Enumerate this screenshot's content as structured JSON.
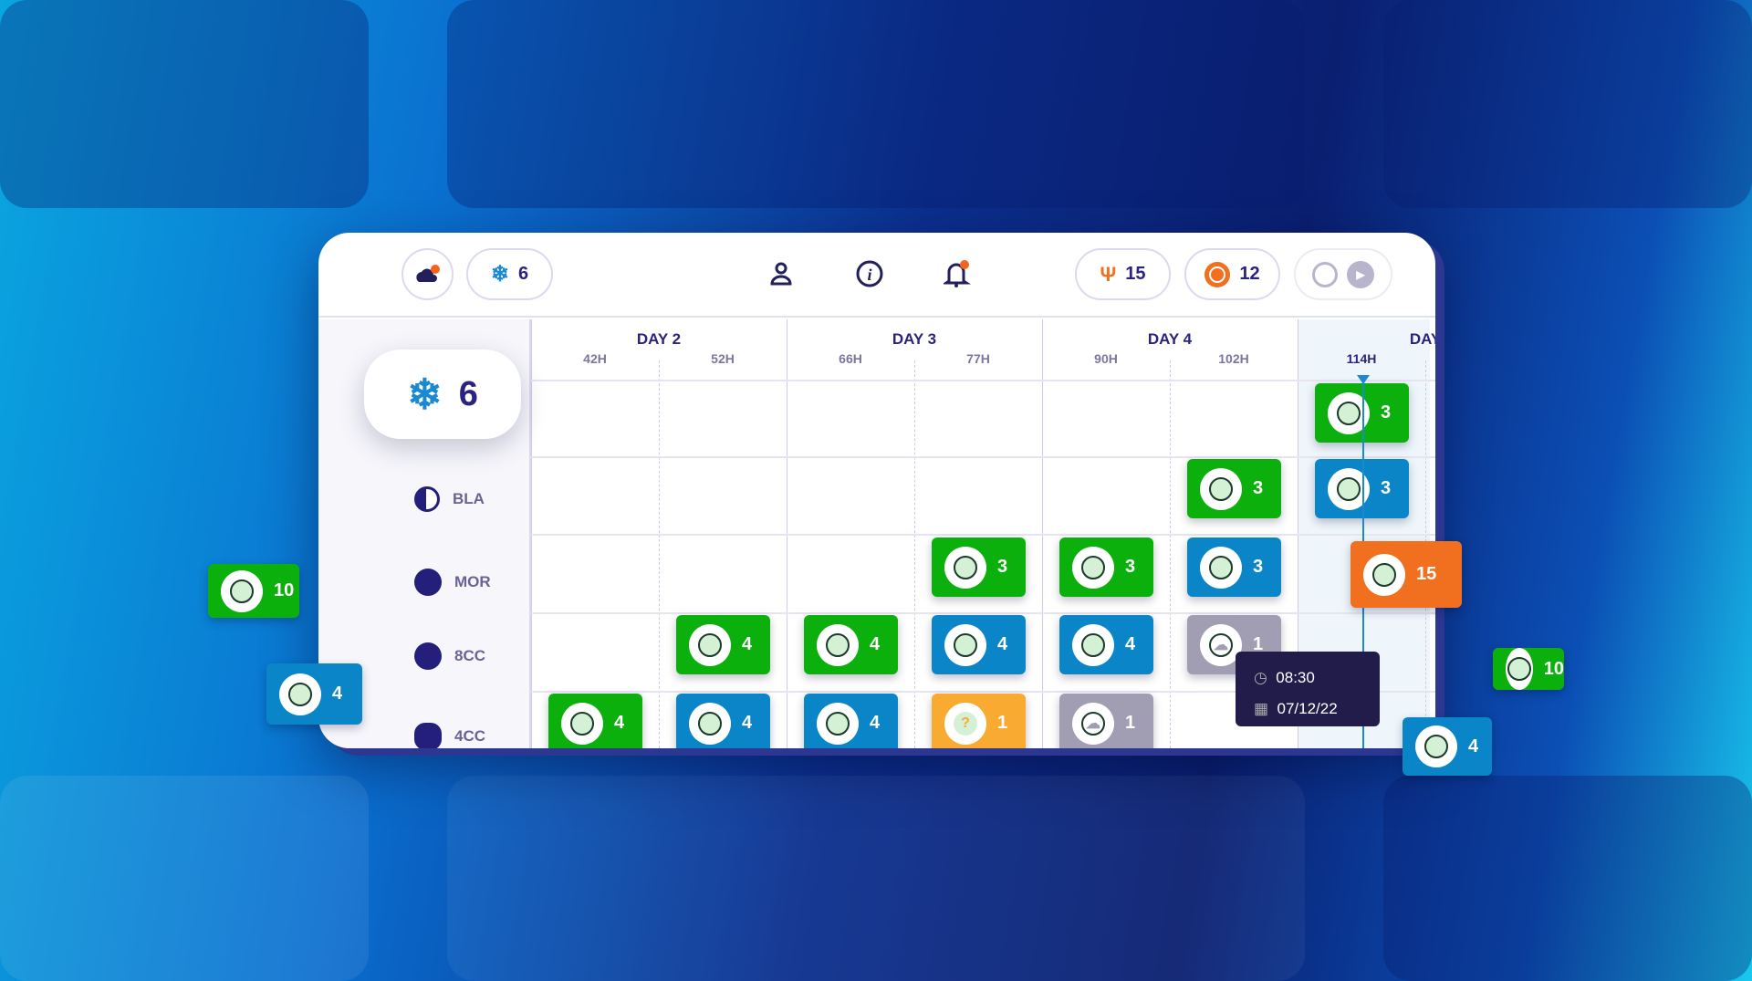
{
  "colors": {
    "green": "#0cb00c",
    "blue": "#0a86c8",
    "orange": "#f07020",
    "yellow": "#f8ab30",
    "gray": "#a19db3",
    "navy": "#2a2380"
  },
  "toolbar": {
    "weather_icon": "cloud-night-icon",
    "frozen_count": "6",
    "icons": [
      "person-icon",
      "info-icon",
      "bell-icon"
    ],
    "uterus_count": "15",
    "transfer_count": "12",
    "play_icon": "play-icon"
  },
  "timeline": {
    "days": [
      "DAY 2",
      "DAY 3",
      "DAY 4",
      "DAY"
    ],
    "hours": [
      "42H",
      "52H",
      "66H",
      "77H",
      "90H",
      "102H",
      "114H"
    ],
    "current_hour": "114H"
  },
  "summary": {
    "frozen_count": "6"
  },
  "rows": [
    "",
    "BLA",
    "MOR",
    "8CC",
    "4CC"
  ],
  "tiles": [
    {
      "row": 0,
      "col": 6,
      "status": "green",
      "icon": "blastocyst",
      "count": "3"
    },
    {
      "row": 1,
      "col": 5,
      "status": "green",
      "icon": "blastocyst",
      "count": "3"
    },
    {
      "row": 1,
      "col": 6,
      "status": "blue",
      "icon": "blastocyst",
      "count": "3"
    },
    {
      "row": 2,
      "col": 3,
      "status": "green",
      "icon": "morula",
      "count": "3"
    },
    {
      "row": 2,
      "col": 4,
      "status": "green",
      "icon": "morula",
      "count": "3"
    },
    {
      "row": 2,
      "col": 5,
      "status": "blue",
      "icon": "morula",
      "count": "3"
    },
    {
      "row": 3,
      "col": 1,
      "status": "green",
      "icon": "8-cell",
      "count": "4"
    },
    {
      "row": 3,
      "col": 2,
      "status": "green",
      "icon": "8-cell",
      "count": "4"
    },
    {
      "row": 3,
      "col": 3,
      "status": "blue",
      "icon": "8-cell",
      "count": "4"
    },
    {
      "row": 3,
      "col": 4,
      "status": "blue",
      "icon": "8-cell",
      "count": "4"
    },
    {
      "row": 3,
      "col": 5,
      "status": "gray",
      "icon": "cloud",
      "count": "1"
    },
    {
      "row": 4,
      "col": 0,
      "status": "green",
      "icon": "4-cell",
      "count": "4"
    },
    {
      "row": 4,
      "col": 1,
      "status": "blue",
      "icon": "4-cell",
      "count": "4"
    },
    {
      "row": 4,
      "col": 2,
      "status": "blue",
      "icon": "4-cell",
      "count": "4"
    },
    {
      "row": 4,
      "col": 3,
      "status": "yellow",
      "icon": "question",
      "count": "1"
    },
    {
      "row": 4,
      "col": 4,
      "status": "gray",
      "icon": "cloud",
      "count": "1"
    }
  ],
  "floating": [
    {
      "status": "green",
      "icon": "embryo",
      "count": "10"
    },
    {
      "status": "blue",
      "icon": "4-cell",
      "count": "4"
    },
    {
      "status": "orange",
      "icon": "transfer",
      "count": "15"
    },
    {
      "status": "green",
      "icon": "embryo",
      "count": "10"
    },
    {
      "status": "blue",
      "icon": "4-cell",
      "count": "4"
    }
  ],
  "tooltip": {
    "time": "08:30",
    "date": "07/12/22"
  }
}
